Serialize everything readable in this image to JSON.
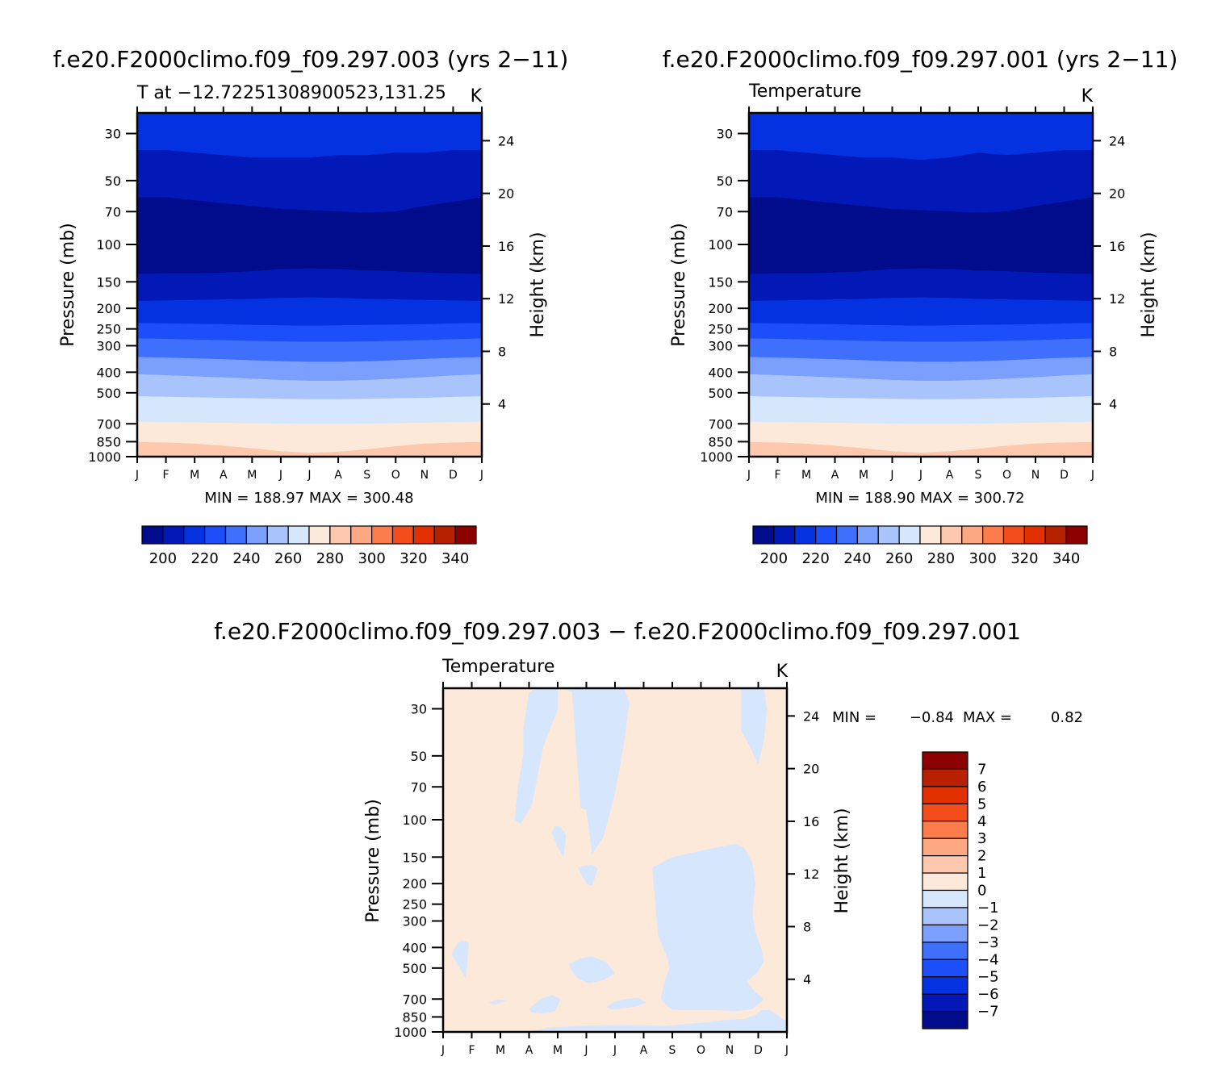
{
  "figure_colors": {
    "temperature_fills": [
      "#000c8c",
      "#0219b8",
      "#0532e0",
      "#1c4ffa",
      "#3e6ffd",
      "#7b9ffd",
      "#a9c4fd",
      "#d5e6fd",
      "#fde9da",
      "#fdc8ad",
      "#fda783",
      "#fd7c4c",
      "#f44d1c",
      "#e33000",
      "#b82100",
      "#8c0000"
    ],
    "difference_fills": [
      "#000c8c",
      "#0219b8",
      "#0532e0",
      "#1c4ffa",
      "#3e6ffd",
      "#7b9ffd",
      "#a9c4fd",
      "#d5e6fd",
      "#fde9da",
      "#fdc8ad",
      "#fda783",
      "#fd7c4c",
      "#f44d1c",
      "#e33000",
      "#b82100",
      "#8c0000"
    ]
  },
  "panels": [
    {
      "title": "f.e20.F2000climo.f09_f09.297.003 (yrs 2−11)",
      "subtitle_left": "T at −12.72251308900523,131.25",
      "subtitle_right": "K",
      "ylabel": "Pressure (mb)",
      "ylabel_right": "Height (km)",
      "stats": "MIN = 188.97 MAX = 300.48"
    },
    {
      "title": "f.e20.F2000climo.f09_f09.297.001 (yrs 2−11)",
      "subtitle_left": "Temperature",
      "subtitle_right": "K",
      "ylabel": "Pressure (mb)",
      "ylabel_right": "Height (km)",
      "stats": "MIN = 188.90 MAX = 300.72"
    },
    {
      "title": "f.e20.F2000climo.f09_f09.297.003 − f.e20.F2000climo.f09_f09.297.001",
      "subtitle_left": "Temperature",
      "subtitle_right": "K",
      "ylabel": "Pressure (mb)",
      "ylabel_right": "Height (km)",
      "stats_min_label": "MIN =",
      "stats_min_value": "−0.84",
      "stats_max_label": "MAX =",
      "stats_max_value": "0.82"
    }
  ],
  "chart_data": [
    {
      "type": "contour",
      "title": "f.e20.F2000climo.f09_f09.297.003 (yrs 2−11)",
      "x": [
        "J",
        "F",
        "M",
        "A",
        "M",
        "J",
        "J",
        "A",
        "S",
        "O",
        "N",
        "D",
        "J"
      ],
      "pressure_ticks": [
        "30",
        "50",
        "70",
        "100",
        "150",
        "200",
        "250",
        "300",
        "400",
        "500",
        "700",
        "850",
        "1000"
      ],
      "pressure_values": [
        30,
        50,
        70,
        100,
        150,
        200,
        250,
        300,
        400,
        500,
        700,
        850,
        1000
      ],
      "height_ticks": [
        "24",
        "20",
        "16",
        "12",
        "8",
        "4"
      ],
      "height_values": [
        24,
        20,
        16,
        12,
        8,
        4
      ],
      "ylim": [
        1000,
        24
      ],
      "contour_levels": [
        190,
        200,
        210,
        220,
        230,
        240,
        250,
        260,
        270,
        280,
        290,
        300,
        310,
        320,
        330,
        340,
        350
      ],
      "colorbar_labels": [
        "200",
        "220",
        "240",
        "260",
        "280",
        "300",
        "320",
        "340"
      ],
      "contour_boundaries_mb": [
        {
          "level": 190,
          "pressure": [
            60,
            60,
            62,
            64,
            66,
            68,
            69,
            70,
            71,
            70,
            66,
            63,
            60
          ]
        },
        {
          "level": 200,
          "pressure": [
            36,
            36,
            37,
            38,
            39,
            39,
            39,
            38,
            38,
            37,
            37,
            36,
            36
          ]
        },
        {
          "level": 210,
          "pressure": [
            138,
            137,
            137,
            136,
            134,
            131,
            130,
            131,
            133,
            134,
            136,
            137,
            138
          ]
        },
        {
          "level": 220,
          "pressure": [
            185,
            184,
            183,
            182,
            181,
            179,
            178,
            179,
            181,
            182,
            183,
            184,
            185
          ]
        },
        {
          "level": 230,
          "pressure": [
            235,
            236,
            237,
            238,
            240,
            241,
            242,
            241,
            240,
            239,
            238,
            236,
            235
          ]
        },
        {
          "level": 240,
          "pressure": [
            278,
            279,
            281,
            283,
            285,
            287,
            288,
            288,
            287,
            285,
            283,
            280,
            278
          ]
        },
        {
          "level": 250,
          "pressure": [
            340,
            342,
            345,
            348,
            352,
            356,
            358,
            358,
            356,
            352,
            347,
            343,
            340
          ]
        },
        {
          "level": 260,
          "pressure": [
            410,
            414,
            419,
            424,
            430,
            436,
            440,
            440,
            436,
            430,
            423,
            415,
            410
          ]
        },
        {
          "level": 270,
          "pressure": [
            520,
            523,
            526,
            529,
            532,
            535,
            537,
            537,
            535,
            532,
            529,
            524,
            520
          ]
        },
        {
          "level": 280,
          "pressure": [
            685,
            688,
            691,
            694,
            697,
            700,
            702,
            702,
            700,
            697,
            693,
            689,
            685
          ]
        },
        {
          "level": 290,
          "pressure": [
            855,
            860,
            870,
            890,
            915,
            945,
            960,
            950,
            925,
            895,
            870,
            860,
            855
          ]
        },
        {
          "level": 300,
          "pressure": [
            1000,
            1000,
            1000,
            1000,
            1000,
            1000,
            992,
            1000,
            1000,
            1000,
            1000,
            1000,
            1000
          ]
        }
      ],
      "min": 188.97,
      "max": 300.48
    },
    {
      "type": "contour",
      "title": "f.e20.F2000climo.f09_f09.297.001 (yrs 2−11)",
      "x": [
        "J",
        "F",
        "M",
        "A",
        "M",
        "J",
        "J",
        "A",
        "S",
        "O",
        "N",
        "D",
        "J"
      ],
      "pressure_ticks": [
        "30",
        "50",
        "70",
        "100",
        "150",
        "200",
        "250",
        "300",
        "400",
        "500",
        "700",
        "850",
        "1000"
      ],
      "pressure_values": [
        30,
        50,
        70,
        100,
        150,
        200,
        250,
        300,
        400,
        500,
        700,
        850,
        1000
      ],
      "height_ticks": [
        "24",
        "20",
        "16",
        "12",
        "8",
        "4"
      ],
      "height_values": [
        24,
        20,
        16,
        12,
        8,
        4
      ],
      "ylim": [
        1000,
        24
      ],
      "contour_levels": [
        190,
        200,
        210,
        220,
        230,
        240,
        250,
        260,
        270,
        280,
        290,
        300,
        310,
        320,
        330,
        340,
        350
      ],
      "colorbar_labels": [
        "200",
        "220",
        "240",
        "260",
        "280",
        "300",
        "320",
        "340"
      ],
      "contour_boundaries_mb": [
        {
          "level": 190,
          "pressure": [
            60,
            60,
            62,
            64,
            66,
            68,
            69,
            70,
            71,
            70,
            66,
            63,
            60
          ]
        },
        {
          "level": 200,
          "pressure": [
            36,
            36,
            37,
            38,
            39,
            39,
            40,
            39,
            37,
            38,
            37,
            36,
            36
          ]
        },
        {
          "level": 210,
          "pressure": [
            138,
            137,
            137,
            136,
            134,
            131,
            130,
            131,
            133,
            134,
            136,
            137,
            138
          ]
        },
        {
          "level": 220,
          "pressure": [
            185,
            184,
            183,
            182,
            181,
            179,
            178,
            179,
            181,
            182,
            183,
            184,
            185
          ]
        },
        {
          "level": 230,
          "pressure": [
            235,
            236,
            237,
            238,
            240,
            241,
            242,
            241,
            240,
            239,
            238,
            236,
            235
          ]
        },
        {
          "level": 240,
          "pressure": [
            278,
            279,
            281,
            283,
            285,
            287,
            288,
            288,
            287,
            285,
            283,
            280,
            278
          ]
        },
        {
          "level": 250,
          "pressure": [
            340,
            342,
            345,
            348,
            352,
            356,
            358,
            358,
            356,
            352,
            347,
            343,
            340
          ]
        },
        {
          "level": 260,
          "pressure": [
            410,
            414,
            419,
            424,
            430,
            436,
            440,
            440,
            436,
            430,
            423,
            415,
            410
          ]
        },
        {
          "level": 270,
          "pressure": [
            520,
            523,
            526,
            529,
            532,
            535,
            537,
            537,
            535,
            532,
            529,
            524,
            520
          ]
        },
        {
          "level": 280,
          "pressure": [
            685,
            688,
            691,
            694,
            697,
            700,
            702,
            702,
            700,
            697,
            693,
            689,
            685
          ]
        },
        {
          "level": 290,
          "pressure": [
            855,
            860,
            870,
            890,
            915,
            945,
            960,
            945,
            920,
            890,
            868,
            860,
            855
          ]
        },
        {
          "level": 300,
          "pressure": [
            1000,
            1000,
            1000,
            1000,
            1000,
            1000,
            1000,
            1000,
            1000,
            1000,
            1000,
            1000,
            1000
          ]
        }
      ],
      "min": 188.9,
      "max": 300.72
    },
    {
      "type": "contour",
      "title": "f.e20.F2000climo.f09_f09.297.003 − f.e20.F2000climo.f09_f09.297.001",
      "x": [
        "J",
        "F",
        "M",
        "A",
        "M",
        "J",
        "J",
        "A",
        "S",
        "O",
        "N",
        "D",
        "J"
      ],
      "pressure_ticks": [
        "30",
        "50",
        "70",
        "100",
        "150",
        "200",
        "250",
        "300",
        "400",
        "500",
        "700",
        "850",
        "1000"
      ],
      "pressure_values": [
        30,
        50,
        70,
        100,
        150,
        200,
        250,
        300,
        400,
        500,
        700,
        850,
        1000
      ],
      "height_ticks": [
        "24",
        "20",
        "16",
        "12",
        "8",
        "4"
      ],
      "height_values": [
        24,
        20,
        16,
        12,
        8,
        4
      ],
      "ylim": [
        1000,
        24
      ],
      "contour_levels": [
        -8,
        -7,
        -6,
        -5,
        -4,
        -3,
        -2,
        -1,
        0,
        1,
        2,
        3,
        4,
        5,
        6,
        7,
        8
      ],
      "colorbar_labels": [
        "7",
        "6",
        "5",
        "4",
        "3",
        "2",
        "1",
        "0",
        "−1",
        "−2",
        "−3",
        "−4",
        "−5",
        "−6",
        "−7"
      ],
      "background_range": [
        0,
        1
      ],
      "negative_regions_range": [
        -1,
        0
      ],
      "negative_regions": [
        {
          "months": [
            2.8,
            3.0,
            3.3,
            3.6,
            4.0,
            4.0,
            3.5,
            3.1,
            2.7,
            2.5,
            2.6,
            2.8
          ],
          "pressure": [
            37,
            25,
            24,
            24,
            24,
            30,
            45,
            85,
            105,
            100,
            72,
            50
          ]
        },
        {
          "months": [
            4.1,
            4.3,
            4.6,
            5.0,
            5.5,
            6.0,
            6.3,
            6.5,
            6.3,
            6.0,
            5.6,
            5.2,
            5.0,
            4.8,
            4.5
          ],
          "pressure": [
            24,
            24,
            24,
            24,
            24,
            24,
            24,
            28,
            45,
            75,
            120,
            145,
            90,
            88,
            25
          ]
        },
        {
          "months": [
            10.4,
            10.5,
            10.9,
            11.2,
            11.3,
            11.2,
            11.0,
            10.7,
            10.4
          ],
          "pressure": [
            24,
            24,
            24,
            24,
            30,
            42,
            55,
            45,
            38
          ]
        },
        {
          "months": [
            3.8,
            3.9,
            4.1,
            4.3,
            4.2,
            4.0
          ],
          "pressure": [
            115,
            107,
            108,
            118,
            150,
            135
          ]
        },
        {
          "months": [
            4.7,
            4.9,
            5.2,
            5.4,
            5.2,
            5.0
          ],
          "pressure": [
            168,
            165,
            163,
            170,
            205,
            200
          ]
        },
        {
          "months": [
            7.3,
            8.0,
            9.0,
            9.8,
            10.2,
            10.5,
            10.8,
            10.9,
            10.8,
            10.9,
            11.1,
            11.2,
            11.0,
            10.6,
            10.9,
            11.2,
            10.8,
            10.2,
            9.6,
            9.0,
            8.5,
            8.0,
            7.8,
            7.6,
            7.7,
            7.9,
            7.8,
            7.5
          ],
          "pressure": [
            168,
            150,
            140,
            133,
            130,
            135,
            160,
            200,
            280,
            340,
            400,
            460,
            520,
            580,
            650,
            700,
            780,
            800,
            790,
            790,
            790,
            785,
            750,
            700,
            600,
            500,
            440,
            350
          ]
        },
        {
          "months": [
            0.2,
            0.5,
            0.7,
            0.9,
            0.8,
            0.5,
            0.3
          ],
          "pressure": [
            460,
            380,
            370,
            380,
            560,
            480,
            430
          ]
        },
        {
          "months": [
            4.4,
            4.8,
            5.2,
            5.7,
            6.0,
            5.6,
            5.1,
            4.7,
            4.5
          ],
          "pressure": [
            480,
            450,
            440,
            470,
            530,
            570,
            590,
            560,
            520
          ]
        },
        {
          "months": [
            1.6,
            1.9,
            2.2,
            1.9,
            1.7
          ],
          "pressure": [
            725,
            705,
            710,
            740,
            740
          ]
        },
        {
          "months": [
            3.0,
            3.4,
            3.8,
            4.1,
            3.9,
            3.5,
            3.1
          ],
          "pressure": [
            780,
            700,
            670,
            700,
            800,
            820,
            810
          ]
        },
        {
          "months": [
            5.7,
            6.0,
            6.4,
            6.8,
            7.1,
            6.7,
            6.1,
            5.8
          ],
          "pressure": [
            760,
            720,
            700,
            690,
            730,
            760,
            780,
            780
          ]
        },
        {
          "months": [
            3.2,
            3.8,
            4.6,
            5.4,
            6.2,
            7.0,
            7.6,
            8.4,
            9.2,
            9.8,
            10.5,
            10.9,
            11.1,
            11.4,
            11.6,
            11.8,
            12.0,
            12.0,
            3.2
          ],
          "pressure": [
            980,
            950,
            940,
            930,
            925,
            930,
            940,
            920,
            900,
            880,
            870,
            830,
            790,
            790,
            820,
            860,
            890,
            1000,
            1000
          ]
        }
      ],
      "min": -0.84,
      "max": 0.82
    }
  ]
}
